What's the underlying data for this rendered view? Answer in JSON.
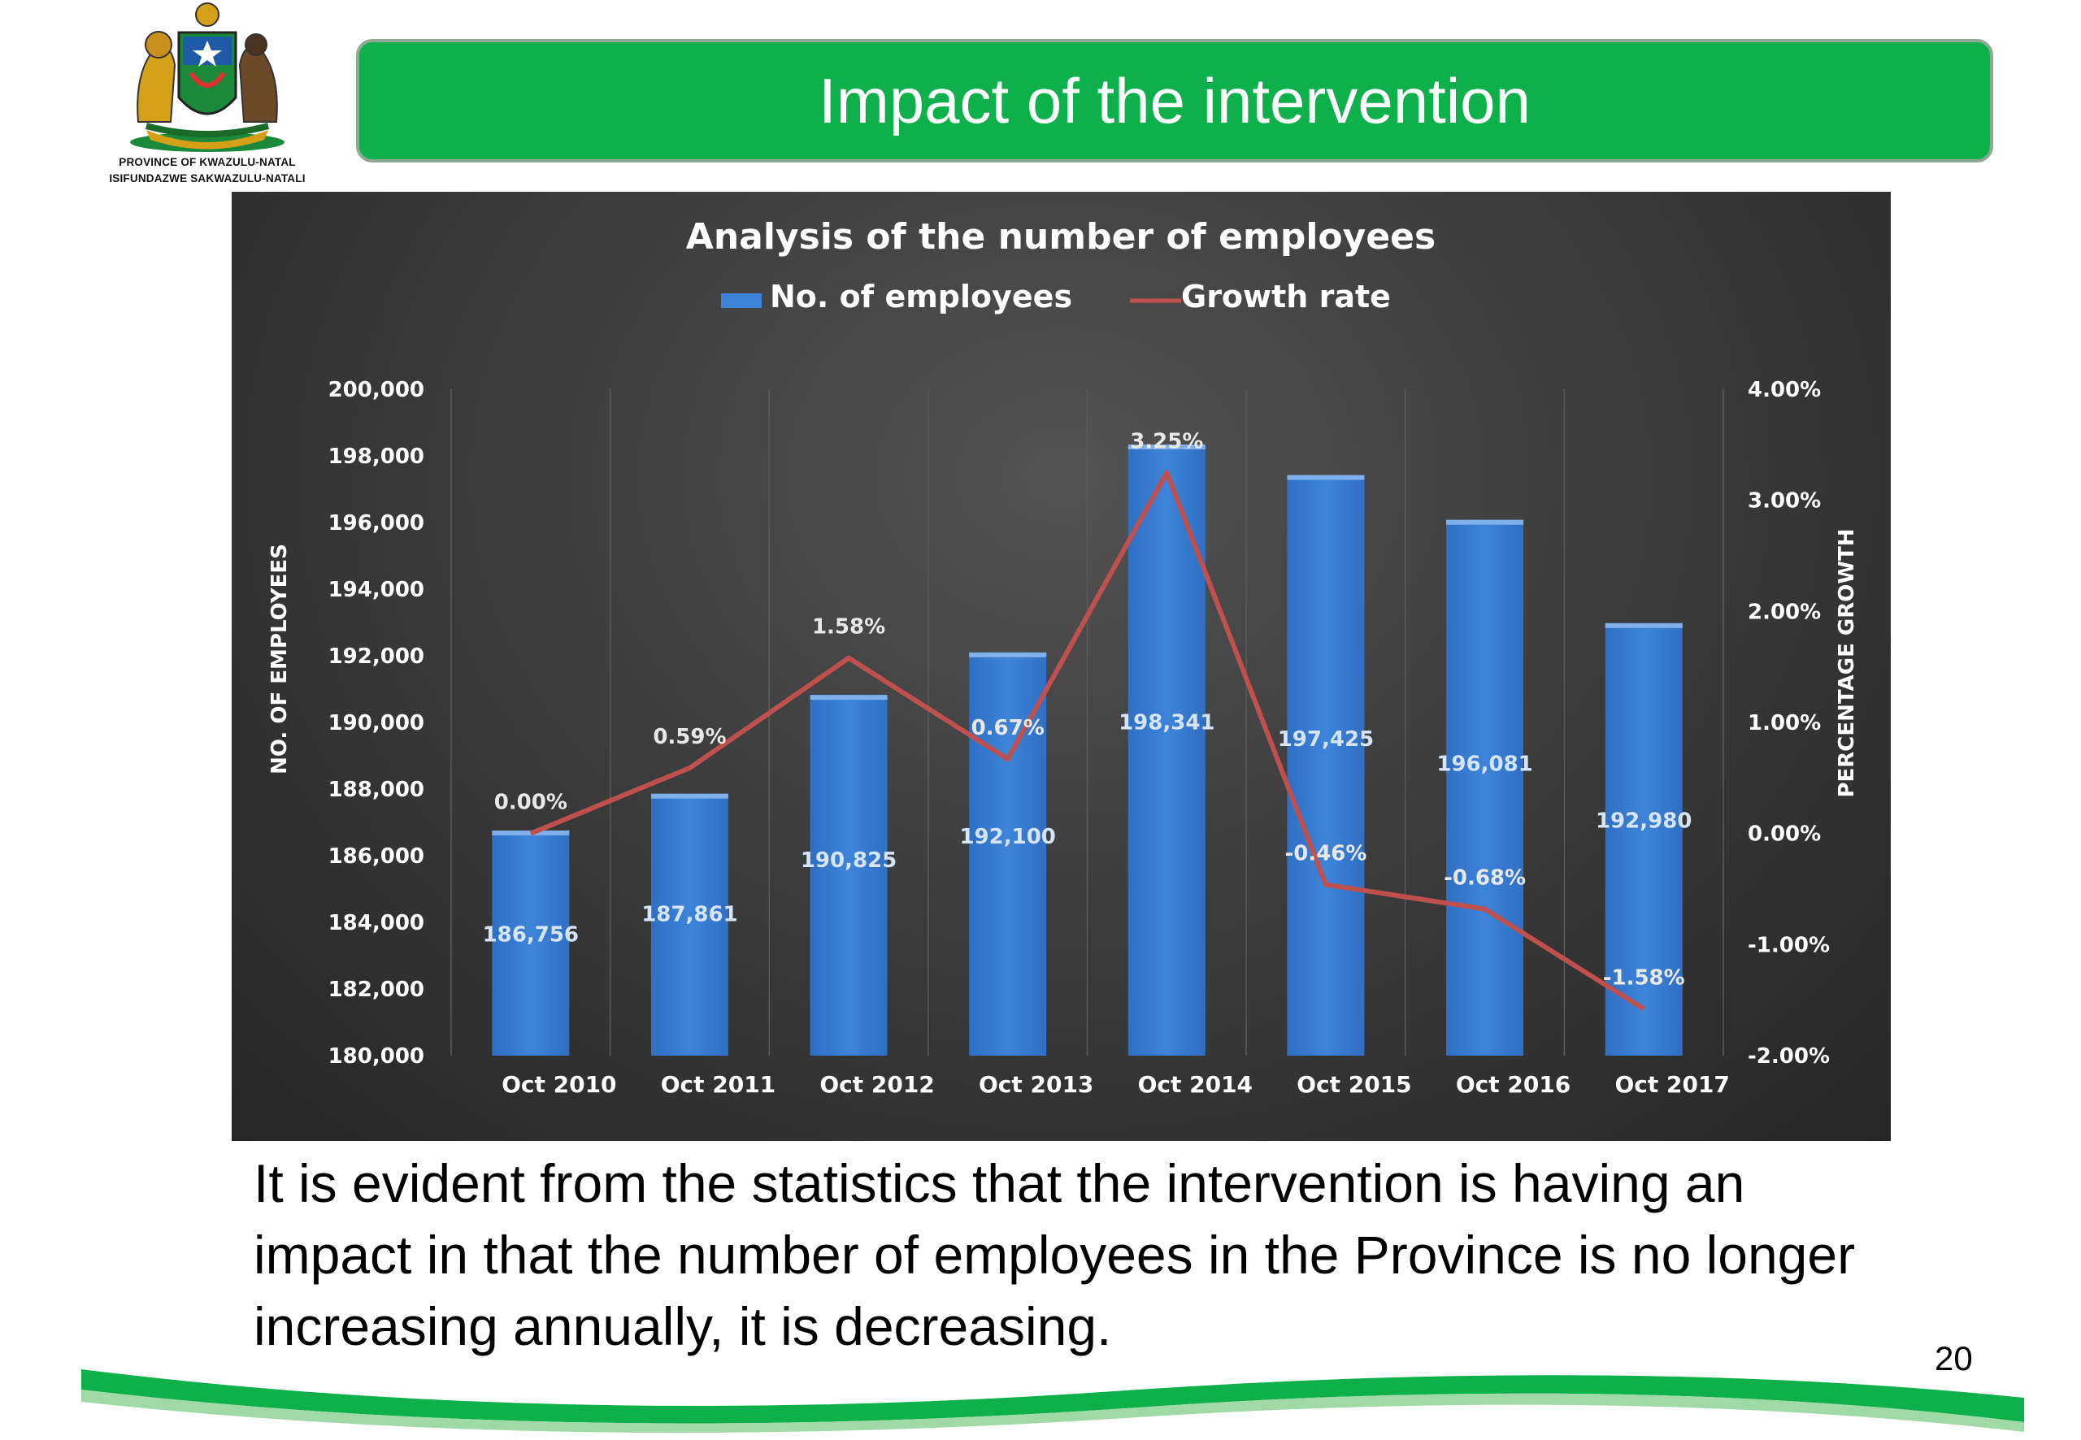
{
  "header": {
    "logo_line1": "PROVINCE OF KWAZULU-NATAL",
    "logo_line2": "ISIFUNDAZWE SAKWAZULU-NATALI",
    "title": "Impact of the intervention",
    "banner_color": "#0eb04b"
  },
  "body_text": "It is evident from the statistics that the intervention is having an impact in that the number of employees in the Province is no longer increasing annually, it is decreasing.",
  "page_number": "20",
  "chart_data": {
    "type": "bar",
    "title": "Analysis of the number of employees",
    "categories": [
      "Oct 2010",
      "Oct 2011",
      "Oct 2012",
      "Oct 2013",
      "Oct 2014",
      "Oct 2015",
      "Oct 2016",
      "Oct 2017"
    ],
    "series": [
      {
        "name": "No. of employees",
        "type": "bar",
        "axis": "left",
        "color": "#3d84d9",
        "values": [
          186756,
          187861,
          190825,
          192100,
          198341,
          197425,
          196081,
          192980
        ],
        "labels": [
          "186,756",
          "187,861",
          "190,825",
          "192,100",
          "198,341",
          "197,425",
          "196,081",
          "192,980"
        ]
      },
      {
        "name": "Growth rate",
        "type": "line",
        "axis": "right",
        "color": "#c0504d",
        "values": [
          0.0,
          0.59,
          1.58,
          0.67,
          3.25,
          -0.46,
          -0.68,
          -1.58
        ],
        "labels": [
          "0.00%",
          "0.59%",
          "1.58%",
          "0.67%",
          "3.25%",
          "-0.46%",
          "-0.68%",
          "-1.58%"
        ]
      }
    ],
    "ylabel": "NO. OF EMPLOYEES",
    "y2label": "PERCENTAGE GROWTH",
    "ylim": [
      180000,
      200000
    ],
    "y2lim": [
      -2,
      4
    ],
    "yticks": [
      "200,000",
      "198,000",
      "196,000",
      "194,000",
      "192,000",
      "190,000",
      "188,000",
      "186,000",
      "184,000",
      "182,000",
      "180,000"
    ],
    "y2ticks": [
      "4.00%",
      "3.00%",
      "2.00%",
      "1.00%",
      "0.00%",
      "-1.00%",
      "-2.00%"
    ],
    "legend": "top",
    "grid": "vertical"
  }
}
